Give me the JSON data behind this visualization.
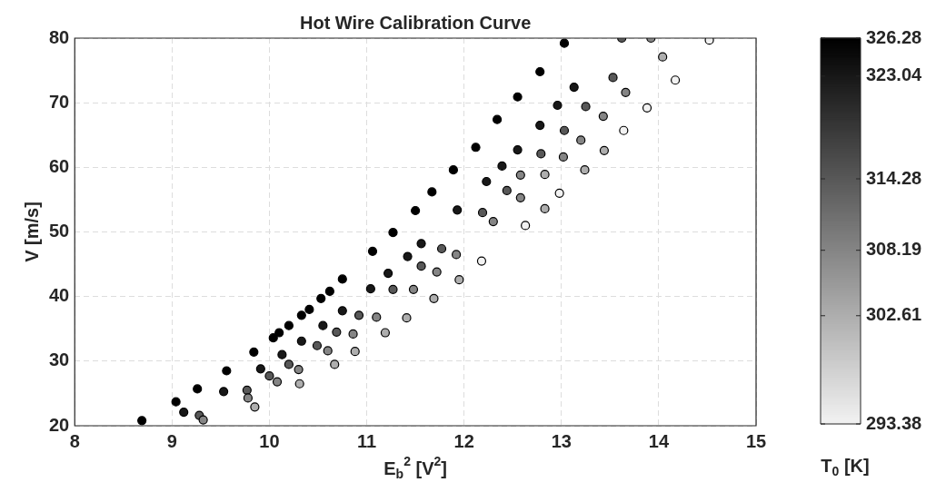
{
  "chart_data": {
    "type": "scatter",
    "title": "Hot Wire Calibration Curve",
    "xlabel": "E$_{b}$$^{2}$ [V$^{2}$]",
    "ylabel": "V [m/s]",
    "clabel": "T$_{0}$ [K]",
    "x": [
      8.69,
      9.04,
      9.26,
      9.56,
      9.84,
      10.04,
      10.1,
      10.2,
      10.33,
      10.41,
      10.53,
      10.62,
      10.75,
      11.06,
      11.27,
      11.5,
      11.67,
      11.89,
      12.12,
      12.34,
      12.55,
      12.78,
      13.03,
      9.12,
      9.53,
      9.91,
      10.13,
      10.33,
      10.55,
      10.75,
      11.04,
      11.22,
      11.42,
      11.56,
      11.93,
      12.23,
      12.39,
      12.55,
      12.78,
      12.96,
      13.13,
      9.28,
      9.77,
      10.0,
      10.2,
      10.49,
      10.69,
      10.92,
      11.27,
      11.56,
      11.77,
      12.19,
      12.44,
      12.79,
      13.03,
      13.25,
      13.53,
      13.62,
      9.32,
      9.78,
      10.08,
      10.3,
      10.6,
      10.86,
      11.1,
      11.48,
      11.72,
      11.92,
      12.3,
      12.58,
      12.58,
      13.02,
      13.2,
      13.43,
      13.66,
      13.92,
      9.85,
      10.31,
      10.67,
      10.88,
      11.19,
      11.41,
      11.69,
      11.95,
      12.83,
      12.83,
      13.24,
      13.44,
      14.04,
      12.18,
      12.63,
      12.98,
      13.64,
      13.88,
      14.17,
      14.52
    ],
    "values": [
      20.8,
      23.7,
      25.7,
      28.5,
      31.4,
      33.6,
      34.4,
      35.5,
      37.1,
      38.0,
      39.7,
      40.8,
      42.7,
      47.0,
      49.9,
      53.3,
      56.2,
      59.6,
      63.1,
      67.4,
      70.9,
      74.8,
      79.2,
      22.1,
      25.3,
      28.8,
      31.0,
      33.1,
      35.5,
      37.8,
      41.2,
      43.6,
      46.2,
      48.2,
      53.4,
      57.8,
      60.2,
      62.7,
      66.5,
      69.6,
      72.4,
      21.6,
      25.5,
      27.7,
      29.5,
      32.4,
      34.5,
      37.1,
      41.1,
      44.7,
      47.4,
      53.0,
      56.4,
      62.1,
      65.7,
      69.4,
      73.9,
      80.0,
      20.9,
      24.3,
      26.8,
      28.7,
      31.6,
      34.2,
      36.8,
      41.1,
      43.8,
      46.5,
      51.6,
      55.3,
      58.8,
      61.6,
      64.2,
      67.9,
      71.6,
      80.0,
      22.9,
      26.5,
      29.5,
      31.5,
      34.4,
      36.7,
      39.7,
      42.6,
      58.9,
      53.6,
      59.6,
      62.6,
      77.1,
      45.5,
      51.0,
      56.0,
      65.7,
      69.2,
      73.5,
      79.7
    ],
    "cvalues": [
      326.28,
      326.28,
      326.28,
      326.28,
      326.28,
      326.28,
      326.28,
      326.28,
      326.28,
      326.28,
      326.28,
      326.28,
      326.28,
      326.28,
      326.28,
      326.28,
      326.28,
      326.28,
      326.28,
      326.28,
      326.28,
      326.28,
      326.28,
      323.04,
      323.04,
      323.04,
      323.04,
      323.04,
      323.04,
      323.04,
      323.04,
      323.04,
      323.04,
      323.04,
      323.04,
      323.04,
      323.04,
      323.04,
      323.04,
      323.04,
      323.04,
      314.28,
      314.28,
      314.28,
      314.28,
      314.28,
      314.28,
      314.28,
      314.28,
      314.28,
      314.28,
      314.28,
      314.28,
      314.28,
      314.28,
      314.28,
      314.28,
      314.28,
      308.19,
      308.19,
      308.19,
      308.19,
      308.19,
      308.19,
      308.19,
      308.19,
      308.19,
      308.19,
      308.19,
      308.19,
      308.19,
      308.19,
      308.19,
      308.19,
      308.19,
      308.19,
      302.61,
      302.61,
      302.61,
      302.61,
      302.61,
      302.61,
      302.61,
      302.61,
      302.61,
      302.61,
      302.61,
      302.61,
      302.61,
      293.38,
      293.38,
      293.38,
      293.38,
      293.38,
      293.38,
      293.38
    ],
    "xlim": [
      8,
      15
    ],
    "xticks": [
      8,
      9,
      10,
      11,
      12,
      13,
      14,
      15
    ],
    "ylim": [
      20,
      80
    ],
    "yticks": [
      20,
      30,
      40,
      50,
      60,
      70,
      80
    ],
    "clim": [
      293.38,
      326.28
    ],
    "cticks": [
      293.38,
      302.61,
      308.19,
      314.28,
      323.04,
      326.28
    ],
    "grid": true,
    "marker": "circle",
    "legend": false
  }
}
